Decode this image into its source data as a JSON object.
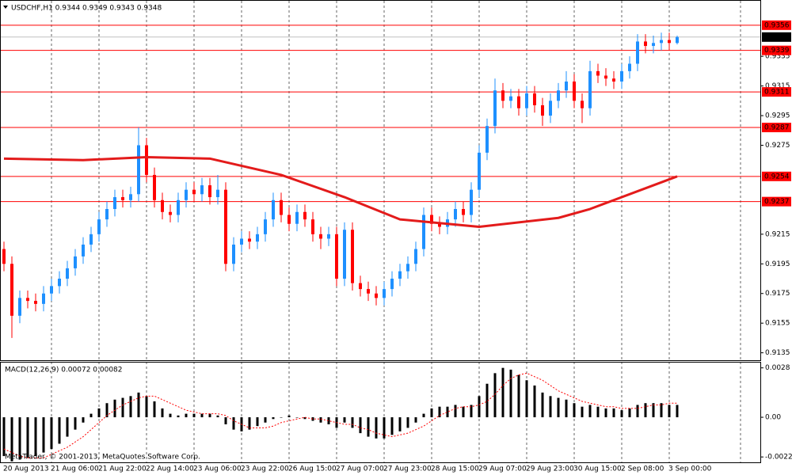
{
  "chart_data": [
    {
      "type": "candlestick",
      "title": "USDCHF,H1 0.9344 0.9349 0.9343 0.9348",
      "categories": [
        "20 Aug 2013",
        null,
        null,
        null,
        null,
        null,
        "21 Aug 06:00",
        null,
        null,
        null,
        null,
        null,
        "21 Aug 22:00",
        null,
        null,
        null,
        null,
        null,
        "22 Aug 14:00",
        null,
        null,
        null,
        null,
        null,
        "23 Aug 06:00",
        null,
        null,
        null,
        null,
        null,
        "23 Aug 22:00",
        null,
        null,
        null,
        null,
        null,
        "26 Aug 15:00",
        null,
        null,
        null,
        null,
        null,
        "27 Aug 07:00",
        null,
        null,
        null,
        null,
        null,
        "27 Aug 23:00",
        null,
        null,
        null,
        null,
        null,
        "28 Aug 15:00",
        null,
        null,
        null,
        null,
        null,
        "29 Aug 07:00",
        null,
        null,
        null,
        null,
        null,
        "29 Aug 23:00",
        null,
        null,
        null,
        null,
        null,
        "30 Aug 15:00",
        null,
        null,
        null,
        null,
        null,
        "2 Sep 08:00",
        null,
        null,
        null,
        null,
        null,
        "3 Sep 00:00",
        null
      ],
      "open": [
        0.9205,
        0.9195,
        0.916,
        0.9172,
        0.917,
        0.9168,
        0.9175,
        0.918,
        0.9185,
        0.9192,
        0.92,
        0.9208,
        0.9215,
        0.9225,
        0.9232,
        0.924,
        0.9238,
        0.9242,
        0.9275,
        0.9255,
        0.9238,
        0.923,
        0.9228,
        0.9238,
        0.9245,
        0.9242,
        0.9248,
        0.924,
        0.9245,
        0.9195,
        0.9208,
        0.9212,
        0.921,
        0.9215,
        0.9225,
        0.9238,
        0.9228,
        0.9222,
        0.923,
        0.9225,
        0.9215,
        0.9212,
        0.9215,
        0.9185,
        0.9218,
        0.9182,
        0.9178,
        0.9175,
        0.9172,
        0.9178,
        0.9185,
        0.919,
        0.9195,
        0.9205,
        0.9228,
        0.9222,
        0.922,
        0.9225,
        0.9232,
        0.9228,
        0.9245,
        0.927,
        0.9288,
        0.9312,
        0.9305,
        0.9308,
        0.93,
        0.931,
        0.9302,
        0.9295,
        0.9305,
        0.9312,
        0.9318,
        0.9305,
        0.93,
        0.9325,
        0.9322,
        0.932,
        0.9318,
        0.9325,
        0.933,
        0.9345,
        0.9342,
        0.9344,
        0.9346,
        0.9344
      ],
      "high": [
        0.921,
        0.92,
        0.9177,
        0.9177,
        0.9175,
        0.918,
        0.9185,
        0.919,
        0.9197,
        0.9205,
        0.9213,
        0.922,
        0.923,
        0.9237,
        0.9245,
        0.9245,
        0.9247,
        0.9287,
        0.928,
        0.926,
        0.9243,
        0.9235,
        0.9243,
        0.925,
        0.925,
        0.9253,
        0.9253,
        0.9255,
        0.925,
        0.9213,
        0.9217,
        0.9217,
        0.922,
        0.923,
        0.9243,
        0.9243,
        0.9233,
        0.9235,
        0.9235,
        0.923,
        0.922,
        0.922,
        0.922,
        0.9223,
        0.9223,
        0.9187,
        0.9183,
        0.918,
        0.9183,
        0.919,
        0.9195,
        0.92,
        0.921,
        0.9233,
        0.9233,
        0.9227,
        0.923,
        0.9237,
        0.9237,
        0.925,
        0.9275,
        0.9293,
        0.932,
        0.9317,
        0.9313,
        0.9313,
        0.9315,
        0.9315,
        0.9307,
        0.931,
        0.9317,
        0.9325,
        0.9323,
        0.931,
        0.9332,
        0.933,
        0.9327,
        0.9325,
        0.933,
        0.9335,
        0.935,
        0.935,
        0.9349,
        0.9351,
        0.9351,
        0.9349
      ],
      "low": [
        0.919,
        0.9145,
        0.9155,
        0.9165,
        0.9163,
        0.9163,
        0.917,
        0.9175,
        0.918,
        0.9187,
        0.9195,
        0.9203,
        0.921,
        0.922,
        0.9227,
        0.9233,
        0.9233,
        0.9237,
        0.925,
        0.9233,
        0.9225,
        0.9223,
        0.9223,
        0.9233,
        0.9237,
        0.9237,
        0.9235,
        0.9235,
        0.919,
        0.919,
        0.9203,
        0.9205,
        0.9205,
        0.921,
        0.922,
        0.9223,
        0.9217,
        0.9217,
        0.922,
        0.921,
        0.9205,
        0.9207,
        0.918,
        0.918,
        0.9177,
        0.9173,
        0.917,
        0.9167,
        0.9167,
        0.9173,
        0.918,
        0.9185,
        0.919,
        0.92,
        0.9217,
        0.9215,
        0.9215,
        0.922,
        0.9223,
        0.9223,
        0.924,
        0.9265,
        0.9283,
        0.93,
        0.93,
        0.9295,
        0.9295,
        0.9297,
        0.9288,
        0.929,
        0.93,
        0.9307,
        0.93,
        0.929,
        0.9295,
        0.9317,
        0.9315,
        0.9313,
        0.9313,
        0.932,
        0.9325,
        0.9337,
        0.9337,
        0.9339,
        0.9339,
        0.9343
      ],
      "close": [
        0.9195,
        0.916,
        0.9172,
        0.917,
        0.9168,
        0.9175,
        0.918,
        0.9185,
        0.9192,
        0.92,
        0.9208,
        0.9215,
        0.9225,
        0.9232,
        0.924,
        0.9238,
        0.9242,
        0.9275,
        0.9255,
        0.9238,
        0.923,
        0.9228,
        0.9238,
        0.9245,
        0.9242,
        0.9248,
        0.924,
        0.9245,
        0.9195,
        0.9208,
        0.9212,
        0.921,
        0.9215,
        0.9225,
        0.9238,
        0.9228,
        0.9222,
        0.923,
        0.9225,
        0.9215,
        0.9212,
        0.9215,
        0.9185,
        0.9218,
        0.9182,
        0.9178,
        0.9175,
        0.9172,
        0.9178,
        0.9185,
        0.919,
        0.9195,
        0.9205,
        0.9228,
        0.9222,
        0.922,
        0.9225,
        0.9232,
        0.9228,
        0.9245,
        0.927,
        0.9288,
        0.9312,
        0.9305,
        0.9308,
        0.93,
        0.931,
        0.9302,
        0.9295,
        0.9305,
        0.9312,
        0.9318,
        0.9305,
        0.93,
        0.9325,
        0.9322,
        0.932,
        0.9318,
        0.9325,
        0.933,
        0.9345,
        0.9342,
        0.9344,
        0.9346,
        0.9344,
        0.9348
      ],
      "up_color": "#1e90ff",
      "down_color": "#ff0000",
      "ylim": [
        0.913,
        0.9373
      ],
      "yticks": [
        0.9335,
        0.9315,
        0.9295,
        0.9275,
        0.9215,
        0.9195,
        0.9175,
        0.9155,
        0.9135
      ],
      "levels": {
        "values": [
          0.9356,
          0.9339,
          0.9311,
          0.9287,
          0.9254,
          0.9237
        ],
        "color": "#ff0000"
      },
      "current_price": 0.9348,
      "moving_average": {
        "x": [
          0,
          10,
          18,
          26,
          35,
          43,
          50,
          60,
          70,
          74,
          82,
          85
        ],
        "values": [
          0.9266,
          0.9265,
          0.9267,
          0.9266,
          0.9255,
          0.924,
          0.9225,
          0.922,
          0.9226,
          0.9232,
          0.9248,
          0.9254
        ],
        "color": "#e31b1b"
      },
      "grid": true
    },
    {
      "type": "macd",
      "title": "MACD(12,26,9) 0.00072 0.00082",
      "values": [
        -0.0022,
        -0.0025,
        -0.0024,
        -0.0023,
        -0.0022,
        -0.002,
        -0.0018,
        -0.0015,
        -0.0011,
        -0.0007,
        -0.0003,
        0.0002,
        0.0005,
        0.0008,
        0.001,
        0.0011,
        0.0012,
        0.0014,
        0.0012,
        0.0009,
        0.0005,
        0.0002,
        0.0001,
        0.0002,
        0.0002,
        0.0002,
        0.0002,
        0.0001,
        -0.0004,
        -0.0007,
        -0.0008,
        -0.0007,
        -0.0005,
        -0.0003,
        -0.0001,
        0.0,
        0.0001,
        0.0,
        -0.0001,
        -0.0002,
        -0.0003,
        -0.0004,
        -0.0006,
        -0.0003,
        -0.0006,
        -0.0009,
        -0.0011,
        -0.0012,
        -0.0012,
        -0.001,
        -0.0008,
        -0.0006,
        -0.0003,
        0.0002,
        0.0005,
        0.0006,
        0.0006,
        0.0007,
        0.0006,
        0.0007,
        0.0012,
        0.0019,
        0.0025,
        0.0028,
        0.0027,
        0.0024,
        0.0021,
        0.0018,
        0.0014,
        0.0012,
        0.0011,
        0.001,
        0.0008,
        0.0006,
        0.0007,
        0.0006,
        0.0005,
        0.0005,
        0.0004,
        0.0005,
        0.0007,
        0.0008,
        0.0008,
        0.0008,
        0.0007,
        0.0007
      ],
      "signal": [
        -0.0018,
        -0.002,
        -0.0022,
        -0.0023,
        -0.0023,
        -0.0023,
        -0.0021,
        -0.0019,
        -0.0017,
        -0.0014,
        -0.0011,
        -0.0007,
        -0.0003,
        0.0001,
        0.0004,
        0.0007,
        0.0009,
        0.0011,
        0.0012,
        0.0012,
        0.001,
        0.0008,
        0.0006,
        0.0004,
        0.0003,
        0.0002,
        0.0002,
        0.0002,
        0.0001,
        -0.0002,
        -0.0004,
        -0.0006,
        -0.0006,
        -0.0006,
        -0.0005,
        -0.0003,
        -0.0002,
        -0.0001,
        0.0,
        -0.0001,
        -0.0001,
        -0.0002,
        -0.0003,
        -0.0004,
        -0.0004,
        -0.0006,
        -0.0007,
        -0.0009,
        -0.001,
        -0.0011,
        -0.001,
        -0.0009,
        -0.0007,
        -0.0005,
        -0.0002,
        0.0001,
        0.0003,
        0.0005,
        0.0006,
        0.0006,
        0.0007,
        0.0009,
        0.0013,
        0.0018,
        0.0022,
        0.0024,
        0.0025,
        0.0023,
        0.0021,
        0.0018,
        0.0015,
        0.0013,
        0.0011,
        0.0009,
        0.0008,
        0.0007,
        0.0006,
        0.0006,
        0.0005,
        0.0005,
        0.0005,
        0.0006,
        0.0007,
        0.0007,
        0.0008,
        0.0008
      ],
      "color": "#000000",
      "signal_color": "#ff0000",
      "ylim": [
        -0.0026,
        0.0031
      ],
      "yticks": [
        0.0028,
        {
          "value": 0,
          "label": "0.00"
        },
        -0.00225
      ]
    }
  ],
  "footer": "MetaTrader, © 2001-2013, MetaQuotes Software Corp."
}
